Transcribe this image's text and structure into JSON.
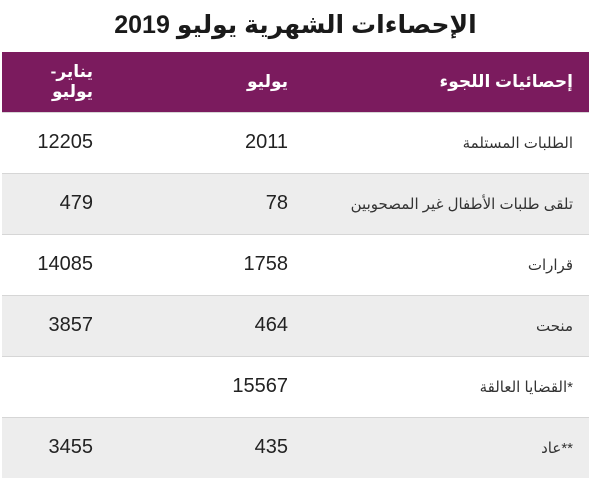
{
  "title": "الإحصاءات الشهرية يوليو 2019",
  "table": {
    "headers": {
      "category": "إحصائيات اللجوء",
      "july": "يوليو",
      "jan_july": "يناير-يوليو"
    },
    "rows": [
      {
        "label": "الطلبات المستلمة",
        "july": "2011",
        "jan_july": "12205"
      },
      {
        "label": "تلقى طلبات الأطفال غير المصحوبين",
        "july": "78",
        "jan_july": "479"
      },
      {
        "label": "قرارات",
        "july": "1758",
        "jan_july": "14085"
      },
      {
        "label": "منحت",
        "july": "464",
        "jan_july": "3857"
      },
      {
        "label": "*القضايا العالقة",
        "july": "15567",
        "jan_july": ""
      },
      {
        "label": "**عاد",
        "july": "435",
        "jan_july": "3455"
      }
    ]
  },
  "colors": {
    "header_background": "#7b1b5e",
    "header_text": "#ffffff",
    "stripe": "#ededed"
  }
}
